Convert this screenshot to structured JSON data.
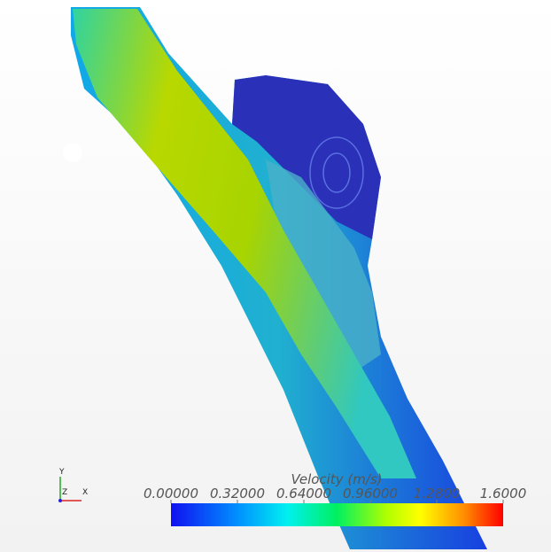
{
  "colorbar": {
    "title": "Velocity (m/s)",
    "range": [
      0,
      1.6
    ],
    "ticks": [
      {
        "value": 0,
        "label": "0.00000"
      },
      {
        "value": 0.32,
        "label": "0.32000"
      },
      {
        "value": 0.64,
        "label": "0.64000"
      },
      {
        "value": 0.96,
        "label": "0.96000"
      },
      {
        "value": 1.28,
        "label": "1.2800"
      },
      {
        "value": 1.6,
        "label": "1.6000"
      }
    ]
  },
  "axes": {
    "y": "Y",
    "z": "Z",
    "x": "X"
  }
}
